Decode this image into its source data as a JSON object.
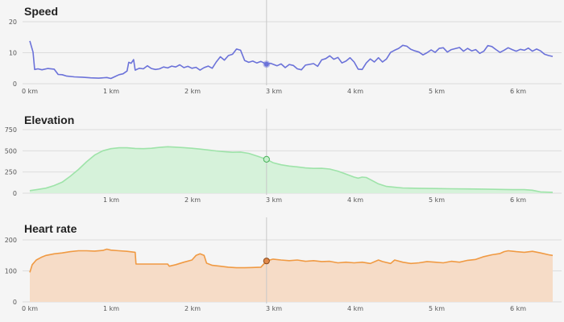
{
  "cursor_x_km": 2.92,
  "chart_data": [
    {
      "type": "line",
      "title": "Speed",
      "color": "#6b72d9",
      "fill": "none",
      "ylim": [
        0,
        20
      ],
      "yticks": [
        "0",
        "10",
        "20"
      ],
      "xticks": [
        "0 km",
        "1 km",
        "2 km",
        "3 km",
        "4 km",
        "5 km",
        "6 km"
      ],
      "xlim": [
        0,
        6.45
      ],
      "cursor_value": 6.3,
      "series": [
        {
          "values": [
            [
              0.0,
              13.8
            ],
            [
              0.04,
              10.2
            ],
            [
              0.06,
              4.6
            ],
            [
              0.1,
              4.8
            ],
            [
              0.15,
              4.5
            ],
            [
              0.22,
              4.9
            ],
            [
              0.3,
              4.7
            ],
            [
              0.35,
              3.0
            ],
            [
              0.4,
              2.9
            ],
            [
              0.45,
              2.5
            ],
            [
              0.55,
              2.2
            ],
            [
              0.65,
              2.1
            ],
            [
              0.75,
              1.9
            ],
            [
              0.85,
              1.8
            ],
            [
              0.95,
              2.0
            ],
            [
              1.0,
              1.7
            ],
            [
              1.05,
              2.3
            ],
            [
              1.1,
              2.9
            ],
            [
              1.15,
              3.2
            ],
            [
              1.2,
              4.1
            ],
            [
              1.22,
              6.9
            ],
            [
              1.25,
              6.6
            ],
            [
              1.28,
              7.8
            ],
            [
              1.3,
              4.4
            ],
            [
              1.35,
              5.0
            ],
            [
              1.4,
              4.8
            ],
            [
              1.45,
              5.8
            ],
            [
              1.5,
              4.9
            ],
            [
              1.55,
              4.6
            ],
            [
              1.6,
              4.8
            ],
            [
              1.65,
              5.4
            ],
            [
              1.7,
              5.1
            ],
            [
              1.75,
              5.7
            ],
            [
              1.8,
              5.4
            ],
            [
              1.85,
              6.1
            ],
            [
              1.9,
              5.2
            ],
            [
              1.95,
              5.6
            ],
            [
              2.0,
              5.0
            ],
            [
              2.05,
              5.3
            ],
            [
              2.1,
              4.4
            ],
            [
              2.15,
              5.2
            ],
            [
              2.2,
              5.7
            ],
            [
              2.25,
              5.0
            ],
            [
              2.3,
              7.0
            ],
            [
              2.35,
              8.7
            ],
            [
              2.4,
              7.6
            ],
            [
              2.45,
              9.1
            ],
            [
              2.5,
              9.5
            ],
            [
              2.55,
              11.2
            ],
            [
              2.6,
              10.8
            ],
            [
              2.65,
              7.5
            ],
            [
              2.7,
              6.9
            ],
            [
              2.75,
              7.3
            ],
            [
              2.8,
              6.7
            ],
            [
              2.85,
              7.2
            ],
            [
              2.92,
              6.3
            ],
            [
              2.97,
              6.6
            ],
            [
              3.05,
              5.8
            ],
            [
              3.1,
              6.4
            ],
            [
              3.15,
              5.2
            ],
            [
              3.2,
              6.2
            ],
            [
              3.25,
              5.9
            ],
            [
              3.3,
              4.8
            ],
            [
              3.35,
              4.5
            ],
            [
              3.4,
              6.0
            ],
            [
              3.5,
              6.5
            ],
            [
              3.55,
              5.6
            ],
            [
              3.6,
              7.7
            ],
            [
              3.65,
              8.1
            ],
            [
              3.7,
              9.0
            ],
            [
              3.75,
              7.9
            ],
            [
              3.8,
              8.5
            ],
            [
              3.85,
              6.7
            ],
            [
              3.9,
              7.3
            ],
            [
              3.95,
              8.4
            ],
            [
              4.0,
              7.0
            ],
            [
              4.05,
              4.7
            ],
            [
              4.1,
              4.6
            ],
            [
              4.15,
              6.7
            ],
            [
              4.2,
              8.0
            ],
            [
              4.25,
              7.0
            ],
            [
              4.3,
              8.4
            ],
            [
              4.35,
              7.0
            ],
            [
              4.4,
              8.0
            ],
            [
              4.45,
              10.1
            ],
            [
              4.5,
              10.8
            ],
            [
              4.55,
              11.4
            ],
            [
              4.6,
              12.4
            ],
            [
              4.65,
              12.1
            ],
            [
              4.7,
              11.1
            ],
            [
              4.75,
              10.6
            ],
            [
              4.8,
              10.2
            ],
            [
              4.85,
              9.3
            ],
            [
              4.9,
              10.0
            ],
            [
              4.95,
              10.9
            ],
            [
              5.0,
              10.1
            ],
            [
              5.05,
              11.4
            ],
            [
              5.1,
              11.6
            ],
            [
              5.15,
              10.2
            ],
            [
              5.2,
              11.0
            ],
            [
              5.3,
              11.7
            ],
            [
              5.35,
              10.5
            ],
            [
              5.4,
              11.4
            ],
            [
              5.45,
              10.6
            ],
            [
              5.5,
              11.0
            ],
            [
              5.55,
              9.8
            ],
            [
              5.6,
              10.5
            ],
            [
              5.65,
              12.3
            ],
            [
              5.7,
              12.0
            ],
            [
              5.75,
              11.0
            ],
            [
              5.8,
              10.1
            ],
            [
              5.85,
              10.8
            ],
            [
              5.9,
              11.6
            ],
            [
              5.95,
              11.0
            ],
            [
              6.0,
              10.5
            ],
            [
              6.05,
              11.1
            ],
            [
              6.1,
              10.8
            ],
            [
              6.15,
              11.5
            ],
            [
              6.2,
              10.5
            ],
            [
              6.25,
              11.2
            ],
            [
              6.3,
              10.6
            ],
            [
              6.35,
              9.5
            ],
            [
              6.4,
              9.1
            ],
            [
              6.45,
              8.8
            ]
          ]
        }
      ]
    },
    {
      "type": "area",
      "title": "Elevation",
      "color": "#9ee3a9",
      "fill": "#d6f2da",
      "ylim": [
        0,
        750
      ],
      "yticks": [
        "0",
        "250",
        "500",
        "750"
      ],
      "xticks": [
        "1 km",
        "2 km",
        "3 km",
        "4 km",
        "5 km",
        "6 km"
      ],
      "xlim": [
        0,
        6.45
      ],
      "cursor_value": 400,
      "series": [
        {
          "values": [
            [
              0.0,
              30
            ],
            [
              0.1,
              45
            ],
            [
              0.2,
              60
            ],
            [
              0.3,
              90
            ],
            [
              0.4,
              130
            ],
            [
              0.5,
              200
            ],
            [
              0.6,
              280
            ],
            [
              0.7,
              370
            ],
            [
              0.8,
              450
            ],
            [
              0.9,
              500
            ],
            [
              1.0,
              525
            ],
            [
              1.1,
              535
            ],
            [
              1.2,
              535
            ],
            [
              1.3,
              528
            ],
            [
              1.4,
              525
            ],
            [
              1.5,
              530
            ],
            [
              1.6,
              540
            ],
            [
              1.7,
              548
            ],
            [
              1.8,
              543
            ],
            [
              1.9,
              537
            ],
            [
              2.0,
              530
            ],
            [
              2.1,
              520
            ],
            [
              2.2,
              510
            ],
            [
              2.3,
              498
            ],
            [
              2.4,
              490
            ],
            [
              2.5,
              482
            ],
            [
              2.6,
              485
            ],
            [
              2.7,
              470
            ],
            [
              2.8,
              440
            ],
            [
              2.92,
              400
            ],
            [
              3.0,
              360
            ],
            [
              3.1,
              335
            ],
            [
              3.2,
              320
            ],
            [
              3.3,
              310
            ],
            [
              3.4,
              298
            ],
            [
              3.5,
              292
            ],
            [
              3.6,
              293
            ],
            [
              3.7,
              285
            ],
            [
              3.8,
              260
            ],
            [
              3.9,
              225
            ],
            [
              4.0,
              190
            ],
            [
              4.05,
              178
            ],
            [
              4.1,
              190
            ],
            [
              4.15,
              185
            ],
            [
              4.2,
              160
            ],
            [
              4.3,
              110
            ],
            [
              4.4,
              80
            ],
            [
              4.5,
              70
            ],
            [
              4.6,
              62
            ],
            [
              4.8,
              58
            ],
            [
              5.0,
              55
            ],
            [
              5.2,
              52
            ],
            [
              5.4,
              50
            ],
            [
              5.6,
              48
            ],
            [
              5.8,
              45
            ],
            [
              6.0,
              42
            ],
            [
              6.1,
              42
            ],
            [
              6.2,
              35
            ],
            [
              6.3,
              15
            ],
            [
              6.45,
              10
            ]
          ]
        }
      ]
    },
    {
      "type": "area",
      "title": "Heart rate",
      "color": "#f09a43",
      "fill": "#f6dcc7",
      "ylim": [
        0,
        200
      ],
      "yticks": [
        "0",
        "100",
        "200"
      ],
      "xticks": [
        "0 km",
        "1 km",
        "2 km",
        "3 km",
        "4 km",
        "5 km",
        "6 km"
      ],
      "xlim": [
        0,
        6.45
      ],
      "cursor_value": 132,
      "series": [
        {
          "values": [
            [
              0.0,
              95
            ],
            [
              0.03,
              120
            ],
            [
              0.08,
              135
            ],
            [
              0.15,
              145
            ],
            [
              0.2,
              150
            ],
            [
              0.3,
              155
            ],
            [
              0.4,
              158
            ],
            [
              0.5,
              162
            ],
            [
              0.6,
              165
            ],
            [
              0.7,
              165
            ],
            [
              0.8,
              164
            ],
            [
              0.9,
              166
            ],
            [
              0.95,
              170
            ],
            [
              1.0,
              167
            ],
            [
              1.1,
              165
            ],
            [
              1.2,
              163
            ],
            [
              1.3,
              160
            ],
            [
              1.31,
              122
            ],
            [
              1.5,
              122
            ],
            [
              1.7,
              122
            ],
            [
              1.72,
              115
            ],
            [
              1.8,
              120
            ],
            [
              1.9,
              128
            ],
            [
              2.0,
              135
            ],
            [
              2.05,
              150
            ],
            [
              2.1,
              155
            ],
            [
              2.15,
              150
            ],
            [
              2.18,
              125
            ],
            [
              2.25,
              118
            ],
            [
              2.35,
              115
            ],
            [
              2.45,
              112
            ],
            [
              2.55,
              110
            ],
            [
              2.65,
              110
            ],
            [
              2.75,
              111
            ],
            [
              2.85,
              112
            ],
            [
              2.92,
              132
            ],
            [
              3.0,
              138
            ],
            [
              3.1,
              135
            ],
            [
              3.2,
              133
            ],
            [
              3.3,
              135
            ],
            [
              3.4,
              131
            ],
            [
              3.5,
              133
            ],
            [
              3.6,
              130
            ],
            [
              3.7,
              131
            ],
            [
              3.8,
              126
            ],
            [
              3.9,
              128
            ],
            [
              4.0,
              126
            ],
            [
              4.1,
              128
            ],
            [
              4.2,
              124
            ],
            [
              4.3,
              135
            ],
            [
              4.35,
              130
            ],
            [
              4.45,
              124
            ],
            [
              4.5,
              135
            ],
            [
              4.6,
              128
            ],
            [
              4.7,
              124
            ],
            [
              4.8,
              126
            ],
            [
              4.9,
              130
            ],
            [
              5.0,
              128
            ],
            [
              5.1,
              126
            ],
            [
              5.2,
              131
            ],
            [
              5.3,
              128
            ],
            [
              5.4,
              134
            ],
            [
              5.5,
              137
            ],
            [
              5.6,
              146
            ],
            [
              5.7,
              152
            ],
            [
              5.8,
              156
            ],
            [
              5.85,
              162
            ],
            [
              5.9,
              165
            ],
            [
              6.0,
              162
            ],
            [
              6.1,
              160
            ],
            [
              6.2,
              163
            ],
            [
              6.3,
              158
            ],
            [
              6.4,
              152
            ],
            [
              6.45,
              150
            ]
          ]
        }
      ]
    }
  ]
}
